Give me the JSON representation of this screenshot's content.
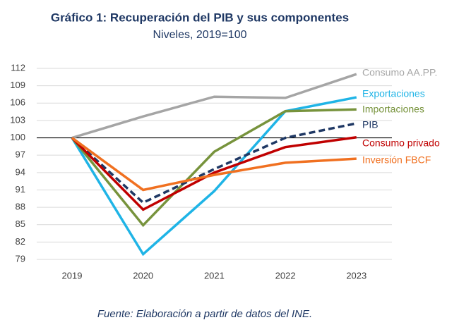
{
  "chart_data": {
    "type": "line",
    "title": "Gráfico 1: Recuperación del PIB y sus componentes",
    "subtitle": "Niveles, 2019=100",
    "source": "Fuente: Elaboración a partir de datos del INE.",
    "categories": [
      "2019",
      "2020",
      "2021",
      "2022",
      "2023"
    ],
    "series": [
      {
        "name": "Consumo AA.PP.",
        "color": "#a5a5a5",
        "values": [
          100,
          103.7,
          107.1,
          106.9,
          111
        ]
      },
      {
        "name": "Exportaciones",
        "color": "#1fb4e6",
        "values": [
          100,
          79.9,
          90.8,
          104.6,
          107
        ]
      },
      {
        "name": "Importaciones",
        "color": "#77933c",
        "values": [
          100,
          84.9,
          97.6,
          104.6,
          104.9
        ]
      },
      {
        "name": "PIB",
        "color": "#1f3864",
        "dashed": true,
        "values": [
          100,
          88.8,
          94.6,
          100,
          102.5
        ]
      },
      {
        "name": "Consumo privado",
        "color": "#c00000",
        "values": [
          100,
          87.6,
          94,
          98.4,
          100.1
        ]
      },
      {
        "name": "Inversión FBCF",
        "color": "#f07020",
        "values": [
          100,
          91,
          93.6,
          95.7,
          96.4
        ]
      }
    ],
    "ylim": [
      79,
      112
    ],
    "yticks": [
      79,
      82,
      85,
      88,
      91,
      94,
      97,
      100,
      103,
      106,
      109,
      112
    ],
    "baseline": 100,
    "grid": true
  }
}
